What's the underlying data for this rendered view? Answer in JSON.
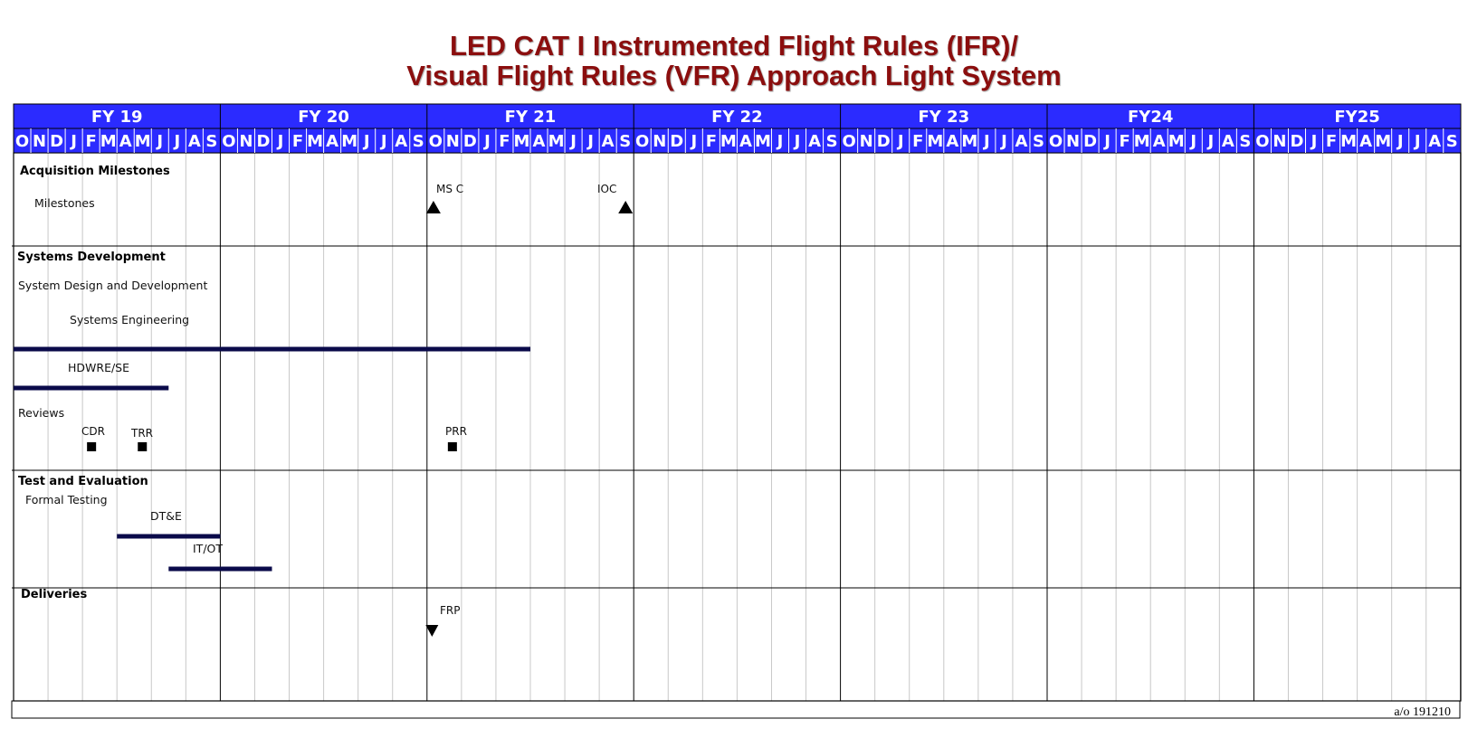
{
  "title": {
    "line1": "LED CAT I Instrumented Flight Rules (IFR)/",
    "line2": "Visual Flight Rules (VFR) Approach Light System"
  },
  "colors": {
    "header_bg": "#2b2bff",
    "title": "#8b0e0e",
    "bar": "#0a0a4a",
    "grid_major": "#000000",
    "grid_minor": "#c8c8c8"
  },
  "fiscal_years": [
    "FY 19",
    "FY 20",
    "FY 21",
    "FY 22",
    "FY 23",
    "FY24",
    "FY25"
  ],
  "months": [
    "O",
    "N",
    "D",
    "J",
    "F",
    "M",
    "A",
    "M",
    "J",
    "J",
    "A",
    "S"
  ],
  "sections": [
    {
      "title": "Acquisition Milestones",
      "labels": [
        {
          "text": "Milestones",
          "indent": 2
        }
      ],
      "bars": [],
      "milestones": [
        {
          "label": "MS C",
          "month": 0.4,
          "shape": "triangle-up",
          "row": 0
        },
        {
          "label": "IOC",
          "month": 11.5,
          "shape": "triangle-up",
          "row": 0
        }
      ]
    },
    {
      "title": "Systems Development",
      "labels": [
        {
          "text": "System Design and Development",
          "indent": 0
        },
        {
          "text": "Systems Engineering",
          "indent": 4
        },
        {
          "text": "HDWRE/SE",
          "indent": 4
        },
        {
          "text": "Reviews",
          "indent": 0
        }
      ],
      "bars": [
        {
          "label": "Systems Engineering",
          "start_month": -24,
          "end_month": 6,
          "color": "#0a0a4a"
        },
        {
          "label": "HDWRE/SE",
          "start_month": -24,
          "end_month": -15,
          "color": "#0a0a4a"
        }
      ],
      "milestones": [
        {
          "label": "CDR",
          "month": -19.5,
          "shape": "square"
        },
        {
          "label": "TRR",
          "month": -16.5,
          "shape": "square"
        },
        {
          "label": "PRR",
          "month": 1.5,
          "shape": "square"
        }
      ]
    },
    {
      "title": "Test and Evaluation",
      "labels": [
        {
          "text": "Formal Testing",
          "indent": 1
        },
        {
          "text": "DT&E",
          "indent": 8
        },
        {
          "text": "IT/OT",
          "indent": 11
        }
      ],
      "bars": [
        {
          "label": "DT&E",
          "start_month": -18,
          "end_month": -12,
          "color": "#0a0a4a"
        },
        {
          "label": "IT/OT",
          "start_month": -15,
          "end_month": -9,
          "color": "#0a0a4a"
        }
      ],
      "milestones": []
    },
    {
      "title": "Deliveries",
      "labels": [],
      "bars": [],
      "milestones": [
        {
          "label": "FRP",
          "month": 0.5,
          "shape": "triangle-down"
        }
      ]
    }
  ],
  "as_of": "a/o 191210"
}
